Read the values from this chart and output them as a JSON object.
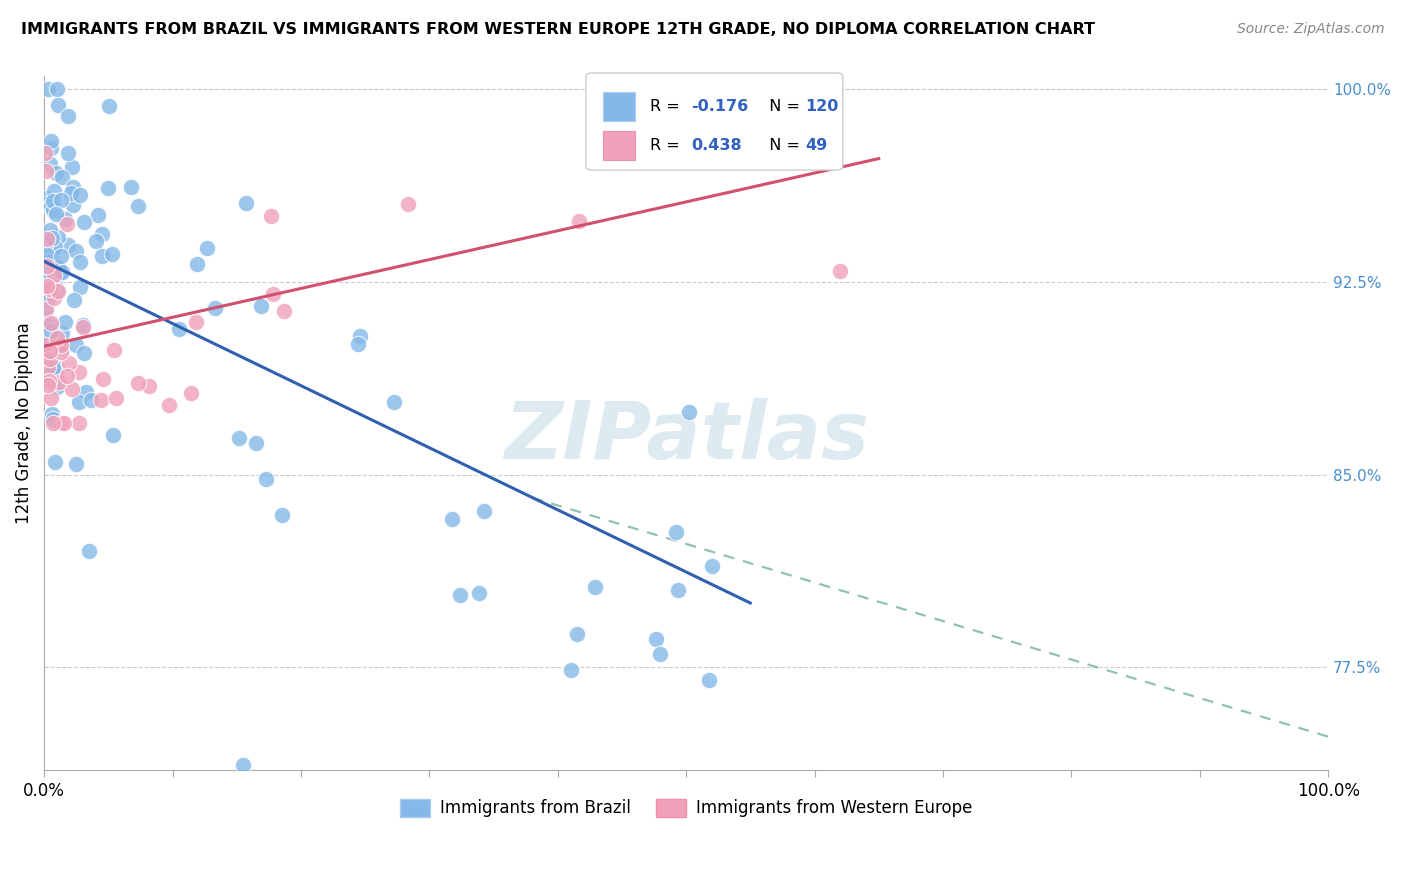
{
  "title": "IMMIGRANTS FROM BRAZIL VS IMMIGRANTS FROM WESTERN EUROPE 12TH GRADE, NO DIPLOMA CORRELATION CHART",
  "source": "Source: ZipAtlas.com",
  "ylabel": "12th Grade, No Diploma",
  "ylabel_right_ticks": [
    "100.0%",
    "92.5%",
    "85.0%",
    "77.5%"
  ],
  "ylabel_right_values": [
    1.0,
    0.925,
    0.85,
    0.775
  ],
  "legend_r1_label": "R = ",
  "legend_r1_val": "-0.176",
  "legend_n1_label": "N = ",
  "legend_n1_val": "120",
  "legend_r2_label": "R = ",
  "legend_r2_val": "0.438",
  "legend_n2_label": "N = ",
  "legend_n2_val": "49",
  "color_brazil": "#85b8e8",
  "color_europe": "#f0a0b8",
  "trendline_brazil_color": "#3060b0",
  "trendline_europe_color": "#d05070",
  "trendline_dashed_color": "#90c0b8",
  "watermark_color": "#c8dce8",
  "xlim": [
    0.0,
    1.0
  ],
  "ylim": [
    0.735,
    1.005
  ],
  "figsize": [
    14.06,
    8.92
  ],
  "dpi": 100,
  "brazil_trend_x0": 0.0,
  "brazil_trend_y0": 0.933,
  "brazil_trend_x1": 0.55,
  "brazil_trend_y1": 0.8,
  "brazil_trend_dash_x0": 0.38,
  "brazil_trend_dash_y0": 0.841,
  "brazil_trend_dash_x1": 1.0,
  "brazil_trend_dash_y1": 0.748,
  "europe_trend_x0": 0.0,
  "europe_trend_y0": 0.9,
  "europe_trend_x1": 0.65,
  "europe_trend_y1": 0.973
}
